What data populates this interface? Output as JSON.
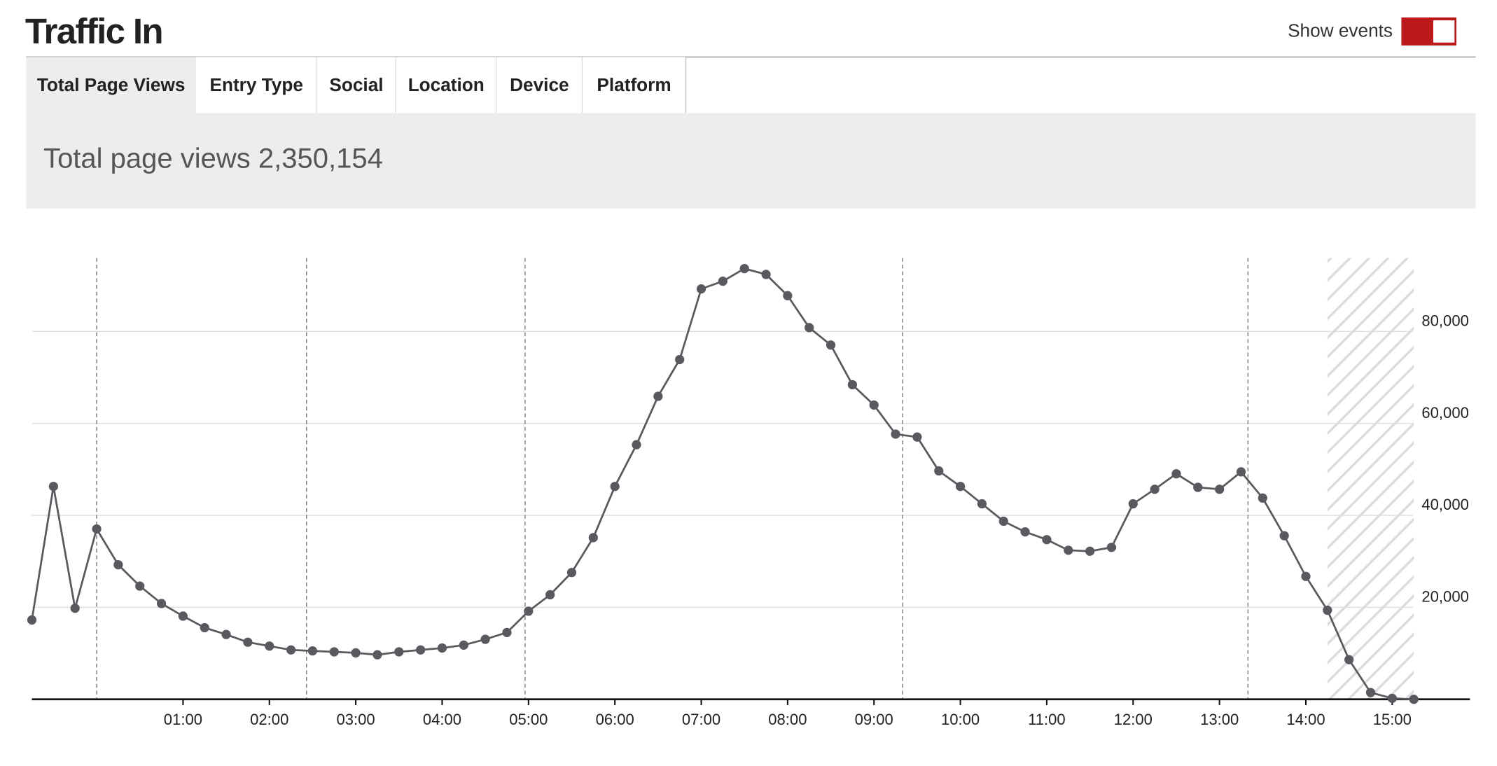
{
  "header": {
    "title": "Traffic In",
    "toggle_label": "Show events",
    "toggle_on": true,
    "toggle_color": "#bb1919"
  },
  "tabs": [
    "Total Page Views",
    "Entry Type",
    "Social",
    "Location",
    "Device",
    "Platform"
  ],
  "active_tab": 0,
  "summary": "Total page views 2,350,154",
  "chart_data": {
    "type": "line",
    "x": [
      -0.75,
      -0.5,
      -0.25,
      0,
      0.25,
      0.5,
      0.75,
      1,
      1.25,
      1.5,
      1.75,
      2,
      2.25,
      2.5,
      2.75,
      3,
      3.25,
      3.5,
      3.75,
      4,
      4.25,
      4.5,
      4.75,
      5,
      5.25,
      5.5,
      5.75,
      6,
      6.25,
      6.5,
      6.75,
      7,
      7.25,
      7.5,
      7.75,
      8,
      8.25,
      8.5,
      8.75,
      9,
      9.25,
      9.5,
      9.75,
      10,
      10.25,
      10.5,
      10.75,
      11,
      11.25,
      11.5,
      11.75,
      12,
      12.25,
      12.5,
      12.75,
      13,
      13.25,
      13.5,
      13.75,
      14,
      14.25,
      14.5,
      14.75,
      15,
      15.25
    ],
    "series": [
      {
        "color": "#5c5860",
        "values": [
          17260,
          46300,
          19800,
          37050,
          29260,
          24630,
          20840,
          18100,
          15580,
          14100,
          12420,
          11580,
          10740,
          10530,
          10320,
          10100,
          9680,
          10320,
          10740,
          11160,
          11790,
          13050,
          14530,
          19160,
          22740,
          27580,
          35160,
          46300,
          55370,
          65900,
          73900,
          89260,
          90940,
          93680,
          92420,
          87790,
          80840,
          77050,
          68420,
          64000,
          57680,
          57050,
          49680,
          46300,
          42520,
          38730,
          36420,
          34730,
          32420,
          32210,
          33050,
          42520,
          45680,
          49050,
          46100,
          45680,
          49470,
          43780,
          35580,
          26730,
          19370,
          8630,
          1470,
          210,
          0
        ]
      }
    ],
    "xlim": [
      -0.75,
      15.9
    ],
    "ylim": [
      0,
      96000
    ],
    "xticks": [
      {
        "value": 1,
        "label": "01:00"
      },
      {
        "value": 2,
        "label": "02:00"
      },
      {
        "value": 3,
        "label": "03:00"
      },
      {
        "value": 4,
        "label": "04:00"
      },
      {
        "value": 5,
        "label": "05:00"
      },
      {
        "value": 6,
        "label": "06:00"
      },
      {
        "value": 7,
        "label": "07:00"
      },
      {
        "value": 8,
        "label": "08:00"
      },
      {
        "value": 9,
        "label": "09:00"
      },
      {
        "value": 10,
        "label": "10:00"
      },
      {
        "value": 11,
        "label": "11:00"
      },
      {
        "value": 12,
        "label": "12:00"
      },
      {
        "value": 13,
        "label": "13:00"
      },
      {
        "value": 14,
        "label": "14:00"
      },
      {
        "value": 15,
        "label": "15:00"
      }
    ],
    "yticks": [
      {
        "value": 20000,
        "label": "20,000"
      },
      {
        "value": 40000,
        "label": "40,000"
      },
      {
        "value": 60000,
        "label": "60,000"
      },
      {
        "value": 80000,
        "label": "80,000"
      }
    ],
    "grid": true,
    "event_lines": [
      0,
      2.43,
      4.96,
      9.33,
      13.33
    ],
    "shaded_range": [
      14.25,
      15.25
    ]
  }
}
